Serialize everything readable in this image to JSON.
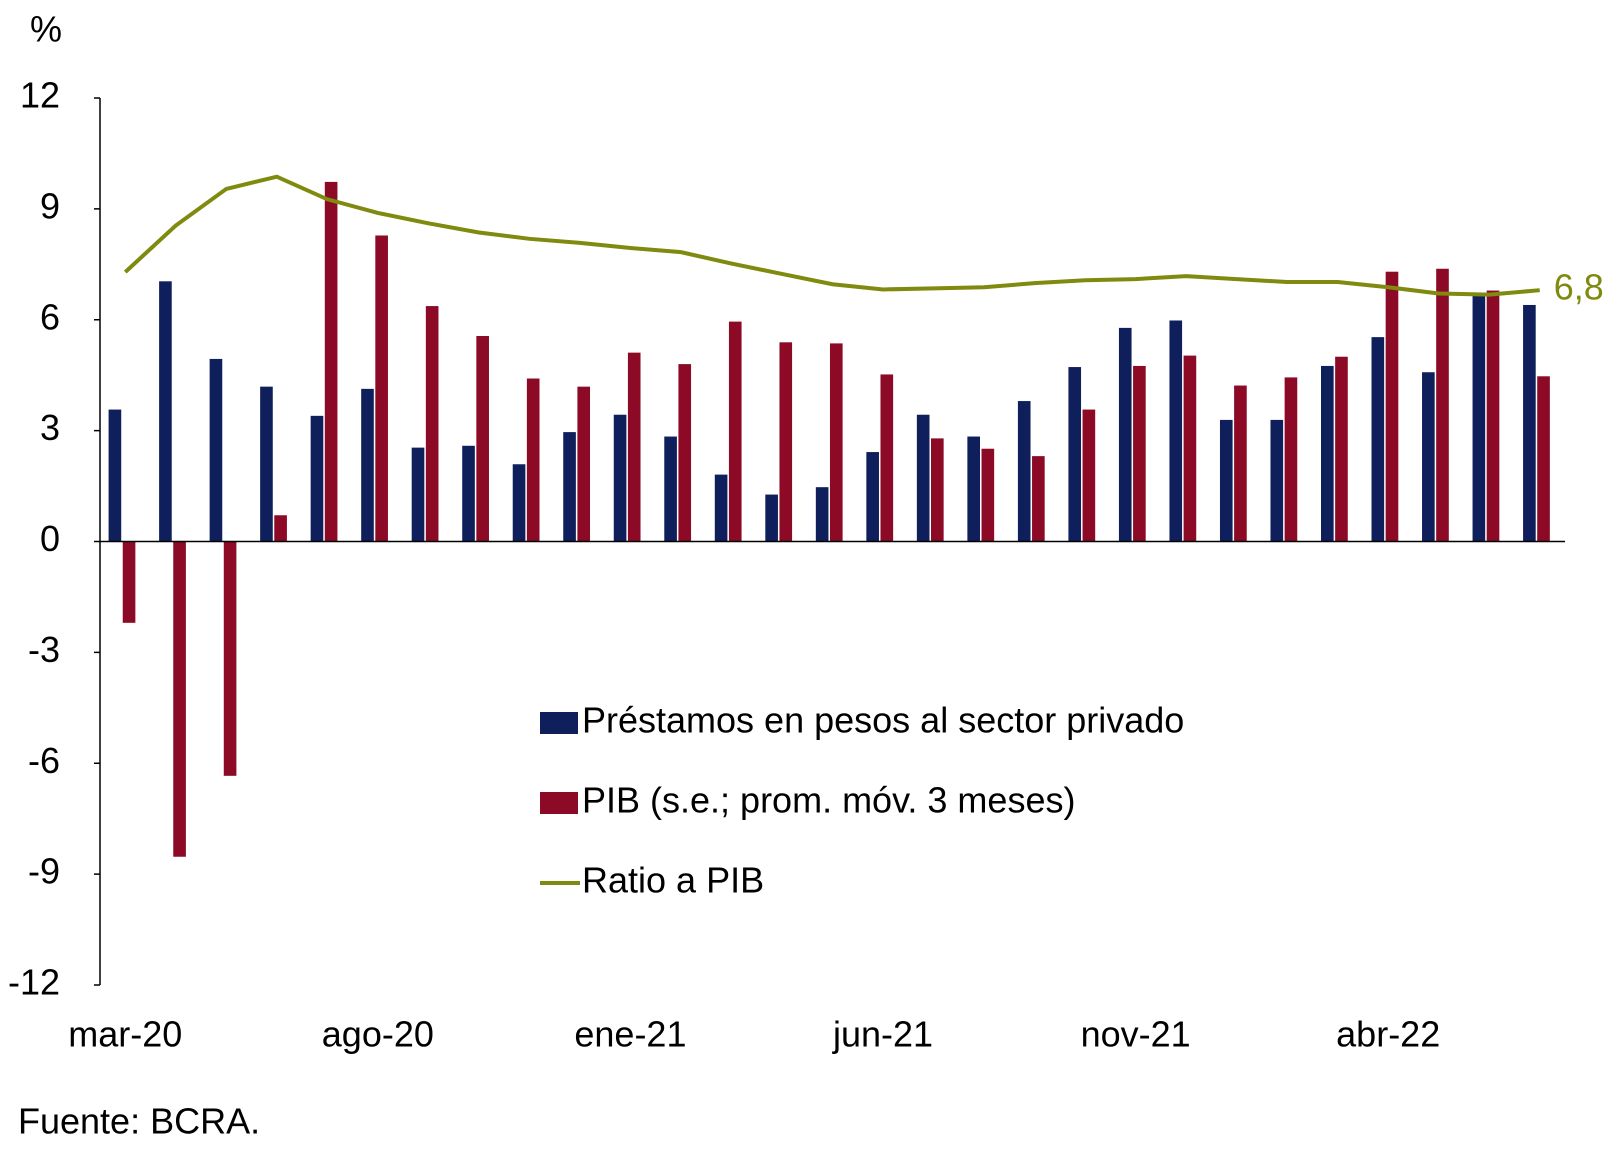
{
  "chart_data": {
    "type": "bar-line",
    "y_unit": "%",
    "source": "Fuente: BCRA.",
    "categories": [
      "mar-20",
      null,
      null,
      null,
      null,
      "ago-20",
      null,
      null,
      null,
      null,
      "ene-21",
      null,
      null,
      null,
      null,
      "jun-21",
      null,
      null,
      null,
      null,
      "nov-21",
      null,
      null,
      null,
      null,
      "abr-22",
      null,
      null,
      null
    ],
    "series": [
      {
        "name": "Préstamos en pesos al sector privado",
        "type": "bar",
        "color": "#0f1f5c",
        "values": [
          3.57,
          7.04,
          4.94,
          4.19,
          3.4,
          4.13,
          2.54,
          2.59,
          2.09,
          2.96,
          3.43,
          2.84,
          1.81,
          1.27,
          1.47,
          2.42,
          3.43,
          2.84,
          3.8,
          4.72,
          5.78,
          5.98,
          3.29,
          3.29,
          4.75,
          5.53,
          4.58,
          6.71,
          6.4
        ]
      },
      {
        "name": "PIB (s.e.; prom. móv. 3 meses)",
        "type": "bar",
        "color": "#8c0a26",
        "values": [
          -2.2,
          -8.53,
          -6.34,
          0.71,
          9.73,
          8.28,
          6.37,
          5.56,
          4.41,
          4.19,
          5.11,
          4.8,
          5.95,
          5.39,
          5.36,
          4.52,
          2.79,
          2.51,
          2.31,
          3.57,
          4.75,
          5.03,
          4.22,
          4.44,
          5.0,
          7.3,
          7.38,
          6.79,
          4.47
        ]
      },
      {
        "name": "Ratio a PIB",
        "type": "line",
        "color": "#7f8a0e",
        "values": [
          7.29,
          8.55,
          9.54,
          9.87,
          9.26,
          8.89,
          8.61,
          8.36,
          8.19,
          8.08,
          7.94,
          7.83,
          7.52,
          7.24,
          6.96,
          6.82,
          6.85,
          6.88,
          6.99,
          7.07,
          7.1,
          7.18,
          7.1,
          7.02,
          7.02,
          6.88,
          6.71,
          6.68,
          6.8
        ],
        "value_labels": [
          null,
          null,
          null,
          null,
          null,
          null,
          null,
          null,
          null,
          null,
          null,
          null,
          null,
          null,
          null,
          null,
          null,
          null,
          null,
          null,
          null,
          null,
          null,
          null,
          null,
          null,
          null,
          null,
          "6,8"
        ]
      }
    ],
    "ylim": [
      -12,
      12
    ],
    "yticks": [
      -12,
      -9,
      -6,
      -3,
      0,
      3,
      6,
      9,
      12
    ]
  }
}
